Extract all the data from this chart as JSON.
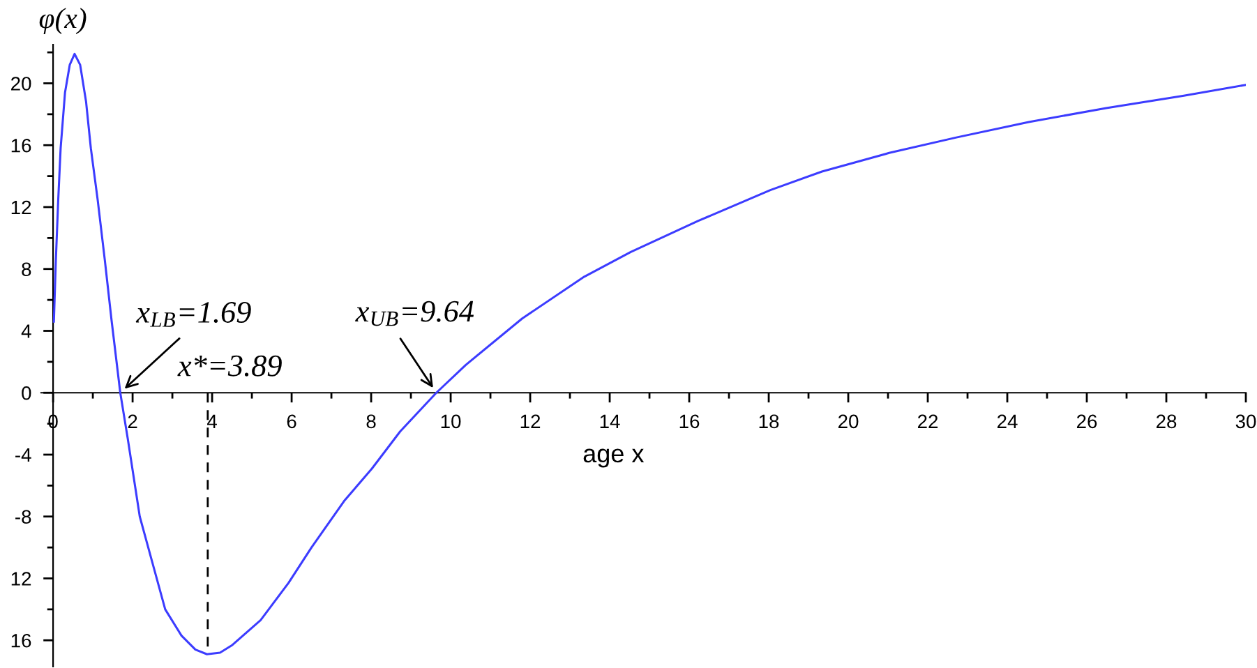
{
  "chart_data": {
    "type": "line",
    "xlabel": "age x",
    "ylabel": "φ(x)",
    "x": [
      0.02,
      0.07,
      0.13,
      0.19,
      0.3,
      0.42,
      0.54,
      0.68,
      0.83,
      0.95,
      1.12,
      1.3,
      1.47,
      1.69,
      1.88,
      2.18,
      2.5,
      2.82,
      3.23,
      3.58,
      3.87,
      4.2,
      4.51,
      5.22,
      5.92,
      6.5,
      7.32,
      8.02,
      8.73,
      9.64,
      10.38,
      11.8,
      13.36,
      14.53,
      16.22,
      18.04,
      19.34,
      21.03,
      22.72,
      24.54,
      26.49,
      28.44,
      30
    ],
    "series": [
      {
        "color": "#3c3cff",
        "values": [
          4.6,
          8.6,
          12.5,
          15.8,
          19.4,
          21.2,
          21.9,
          21.2,
          18.8,
          15.8,
          12.5,
          8.6,
          4.7,
          0.0,
          -3.0,
          -8.0,
          -11.0,
          -14.0,
          -15.7,
          -16.6,
          -16.9,
          -16.8,
          -16.3,
          -14.7,
          -12.3,
          -10.0,
          -7.0,
          -4.9,
          -2.5,
          0.0,
          1.8,
          4.8,
          7.5,
          9.1,
          11.1,
          13.1,
          14.3,
          15.5,
          16.5,
          17.5,
          18.4,
          19.2,
          19.9
        ]
      }
    ],
    "xlim": [
      -0.3,
      30
    ],
    "ylim": [
      -17.7,
      22.5
    ],
    "xticks": [
      0,
      {
        "value": 1,
        "label": null
      },
      2,
      {
        "value": 3,
        "label": null
      },
      4,
      {
        "value": 5,
        "label": null
      },
      6,
      {
        "value": 7,
        "label": null
      },
      8,
      {
        "value": 9,
        "label": null
      },
      10,
      {
        "value": 11,
        "label": null
      },
      12,
      {
        "value": 13,
        "label": null
      },
      14,
      {
        "value": 15,
        "label": null
      },
      16,
      {
        "value": 17,
        "label": null
      },
      18,
      {
        "value": 19,
        "label": null
      },
      20,
      {
        "value": 21,
        "label": null
      },
      22,
      {
        "value": 23,
        "label": null
      },
      24,
      {
        "value": 25,
        "label": null
      },
      26,
      {
        "value": 27,
        "label": null
      },
      28,
      {
        "value": 29,
        "label": null
      },
      30
    ],
    "yticks": [
      {
        "value": 22,
        "label": null
      },
      20,
      {
        "value": 18,
        "label": null
      },
      16,
      {
        "value": 14,
        "label": null
      },
      12,
      {
        "value": 10,
        "label": null
      },
      8,
      {
        "value": 6,
        "label": null
      },
      4,
      {
        "value": 2,
        "label": null
      },
      0,
      {
        "value": -2,
        "label": null
      },
      -4,
      {
        "value": -6,
        "label": null
      },
      -8,
      {
        "value": -10,
        "label": null
      },
      {
        "value": -12,
        "label": "12"
      },
      {
        "value": -14,
        "label": null
      },
      {
        "value": -16,
        "label": "16"
      }
    ],
    "ref_lines": [
      {
        "axis": "x",
        "value": 3.89,
        "label": "x*=3.89",
        "color": "#000000",
        "line_style": "dashed"
      }
    ],
    "annotations": [
      {
        "text": "x$_{LB}$=1.69",
        "x": 1.69,
        "y": 0
      },
      {
        "text": "x$_{UB}$=9.64",
        "x": 9.64,
        "y": 0
      }
    ]
  }
}
